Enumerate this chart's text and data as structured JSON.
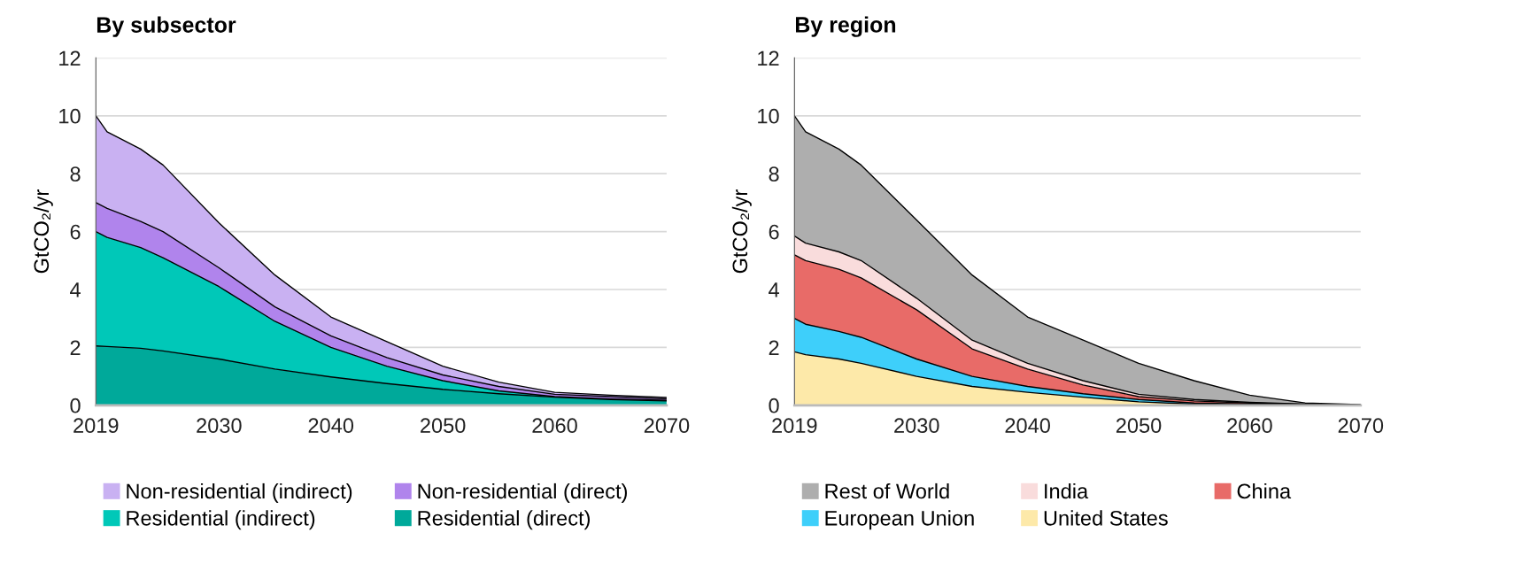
{
  "chart_data": [
    {
      "type": "area",
      "title": "By subsector",
      "ylabel": "GtCO₂/yr",
      "stacked": true,
      "grid": "y",
      "legend": "bottom",
      "x": [
        2019,
        2020,
        2023,
        2025,
        2030,
        2035,
        2040,
        2045,
        2050,
        2055,
        2060,
        2065,
        2070
      ],
      "xlim": [
        2019,
        2070
      ],
      "xticks": [
        2019,
        2030,
        2040,
        2050,
        2060,
        2070
      ],
      "ylim": [
        0,
        12
      ],
      "yticks": [
        0,
        2,
        4,
        6,
        8,
        10,
        12
      ],
      "series": [
        {
          "name": "Residential (direct)",
          "color": "#00a99a",
          "values": [
            2.05,
            2.03,
            1.97,
            1.88,
            1.6,
            1.25,
            0.98,
            0.75,
            0.55,
            0.4,
            0.28,
            0.2,
            0.15
          ]
        },
        {
          "name": "Residential (indirect)",
          "color": "#00c8b8",
          "values": [
            3.95,
            3.77,
            3.48,
            3.22,
            2.5,
            1.65,
            1.02,
            0.6,
            0.3,
            0.1,
            0.02,
            0.02,
            0.02
          ]
        },
        {
          "name": "Non-residential (direct)",
          "color": "#b084ec",
          "values": [
            1.0,
            1.0,
            0.9,
            0.9,
            0.65,
            0.5,
            0.4,
            0.3,
            0.2,
            0.15,
            0.08,
            0.08,
            0.05
          ]
        },
        {
          "name": "Non-residential (indirect)",
          "color": "#c9b1f2",
          "values": [
            3.0,
            2.65,
            2.5,
            2.3,
            1.55,
            1.1,
            0.65,
            0.55,
            0.3,
            0.15,
            0.07,
            0.05,
            0.05
          ]
        }
      ]
    },
    {
      "type": "area",
      "title": "By region",
      "ylabel": "GtCO₂/yr",
      "stacked": true,
      "grid": "y",
      "legend": "bottom",
      "x": [
        2019,
        2020,
        2023,
        2025,
        2030,
        2035,
        2040,
        2045,
        2050,
        2055,
        2060,
        2065,
        2070
      ],
      "xlim": [
        2019,
        2070
      ],
      "xticks": [
        2019,
        2030,
        2040,
        2050,
        2060,
        2070
      ],
      "ylim": [
        0,
        12
      ],
      "yticks": [
        0,
        2,
        4,
        6,
        8,
        10,
        12
      ],
      "series": [
        {
          "name": "United States",
          "color": "#fde9a9",
          "values": [
            1.85,
            1.75,
            1.6,
            1.45,
            1.0,
            0.65,
            0.45,
            0.28,
            0.12,
            0.04,
            0.02,
            0.01,
            0
          ]
        },
        {
          "name": "European Union",
          "color": "#3ecffa",
          "values": [
            1.15,
            1.05,
            0.95,
            0.9,
            0.6,
            0.35,
            0.2,
            0.12,
            0.08,
            0.04,
            0.02,
            0.01,
            0
          ]
        },
        {
          "name": "China",
          "color": "#e86b68",
          "values": [
            2.2,
            2.2,
            2.15,
            2.05,
            1.7,
            0.95,
            0.6,
            0.3,
            0.1,
            0.07,
            0.04,
            0.01,
            0.01
          ]
        },
        {
          "name": "India",
          "color": "#f9dcdc",
          "values": [
            0.65,
            0.6,
            0.6,
            0.6,
            0.4,
            0.3,
            0.2,
            0.15,
            0.08,
            0.05,
            0.02,
            0.01,
            0
          ]
        },
        {
          "name": "Rest of World",
          "color": "#aeaeae",
          "values": [
            4.15,
            3.85,
            3.55,
            3.3,
            2.7,
            2.25,
            1.6,
            1.4,
            1.07,
            0.65,
            0.25,
            0.04,
            0.01
          ]
        }
      ]
    }
  ]
}
